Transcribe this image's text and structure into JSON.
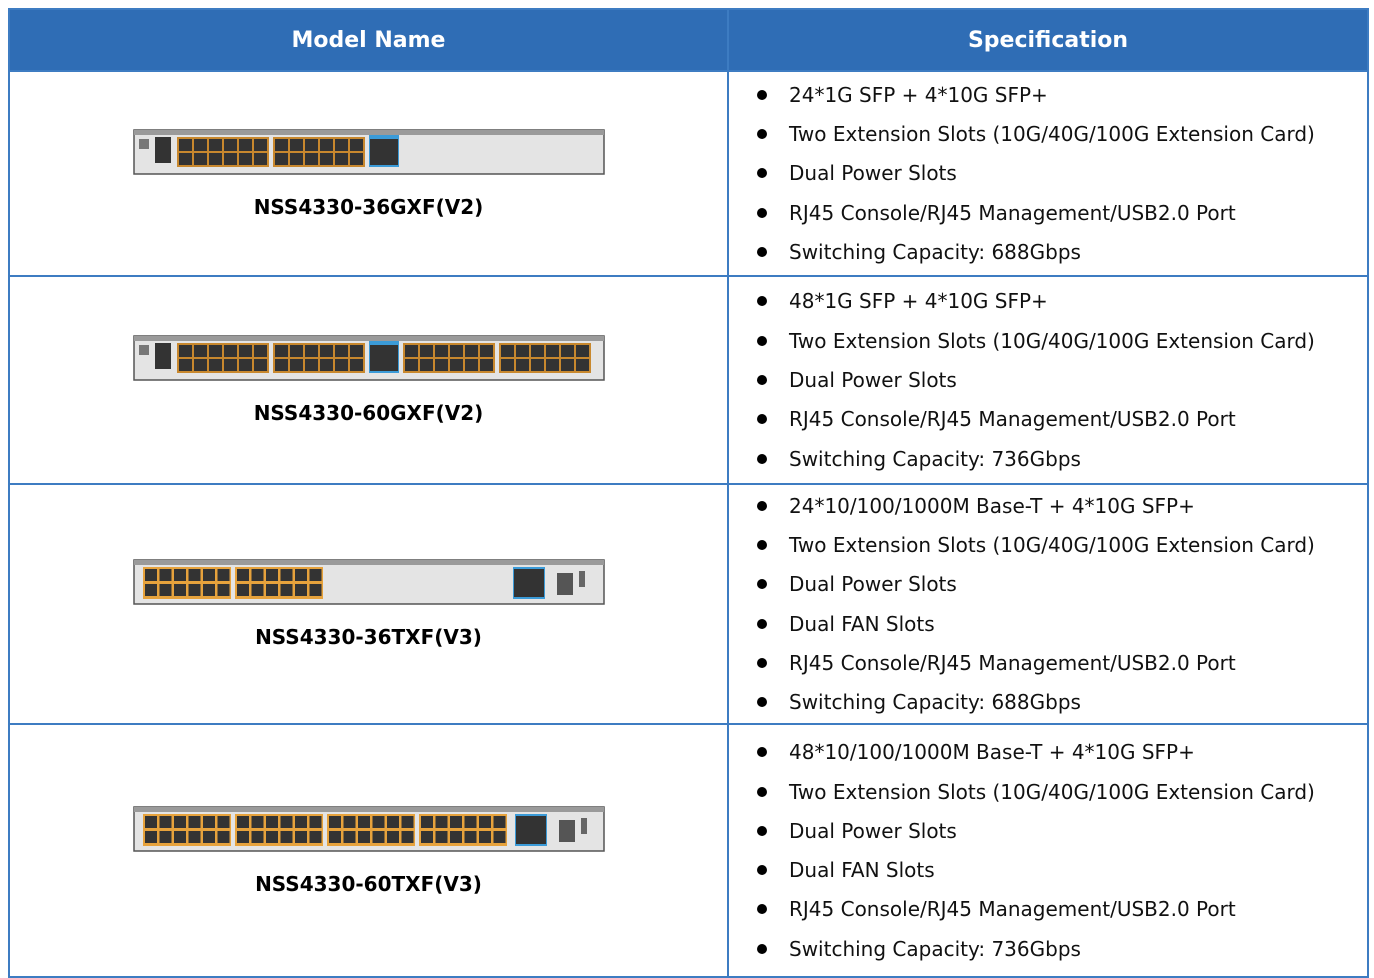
{
  "header": {
    "columns": [
      "Model Name",
      "Specification"
    ]
  },
  "rows": [
    {
      "model": "NSS4330-36GXF(V2)",
      "specs": [
        "24*1G SFP + 4*10G SFP+",
        "Two Extension Slots (10G/40G/100G Extension Card)",
        "Dual Power Slots",
        "RJ45 Console/RJ45 Management/USB2.0 Port",
        "Switching Capacity: 688Gbps"
      ]
    },
    {
      "model": "NSS4330-60GXF(V2)",
      "specs": [
        "48*1G SFP + 4*10G SFP+",
        "Two Extension Slots (10G/40G/100G Extension Card)",
        "Dual Power Slots",
        "RJ45 Console/RJ45 Management/USB2.0 Port",
        "Switching Capacity: 736Gbps"
      ]
    },
    {
      "model": "NSS4330-36TXF(V3)",
      "specs": [
        "24*10/100/1000M Base-T + 4*10G SFP+",
        "Two Extension Slots (10G/40G/100G Extension Card)",
        "Dual Power Slots",
        "Dual FAN Slots",
        "RJ45 Console/RJ45 Management/USB2.0 Port",
        "Switching Capacity: 688Gbps"
      ]
    },
    {
      "model": "NSS4330-60TXF(V3)",
      "specs": [
        "48*10/100/1000M Base-T + 4*10G SFP+",
        "Two Extension Slots (10G/40G/100G Extension Card)",
        "Dual Power Slots",
        "Dual FAN Slots",
        "RJ45 Console/RJ45 Management/USB2.0 Port",
        "Switching Capacity: 736Gbps"
      ]
    }
  ]
}
